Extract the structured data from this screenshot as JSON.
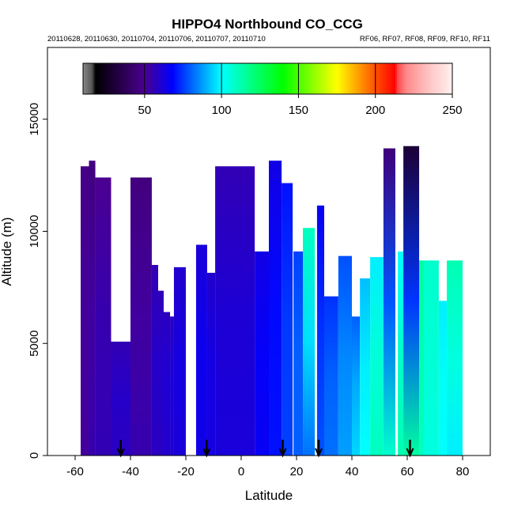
{
  "chart_data": {
    "type": "heatmap",
    "title": "HIPPO4 Northbound CO_CCG",
    "subtitle_left": "20110628, 20110630, 20110704, 20110706, 20110707, 20110710",
    "subtitle_right": "RF06, RF07, RF08, RF09, RF10, RF11",
    "xlabel": "Latitude",
    "ylabel": "Altitude (m)",
    "xlim": [
      -70,
      90
    ],
    "ylim": [
      0,
      18200
    ],
    "x_ticks": [
      -60,
      -40,
      -20,
      0,
      20,
      40,
      60,
      80
    ],
    "y_ticks": [
      0,
      5000,
      10000,
      15000
    ],
    "colorbar": {
      "range": [
        10,
        250
      ],
      "ticks": [
        50,
        100,
        150,
        200,
        250
      ],
      "stops": [
        [
          10,
          "#888888"
        ],
        [
          16,
          "#555555"
        ],
        [
          18,
          "#000000"
        ],
        [
          50,
          "#4b0090"
        ],
        [
          68,
          "#0000ff"
        ],
        [
          100,
          "#00ffff"
        ],
        [
          140,
          "#00ff00"
        ],
        [
          175,
          "#ffff00"
        ],
        [
          200,
          "#ff5000"
        ],
        [
          213,
          "#ff0000"
        ],
        [
          214,
          "#ff4444"
        ],
        [
          220,
          "#ff8888"
        ],
        [
          228,
          "#ffaaaa"
        ],
        [
          236,
          "#ffc8c8"
        ],
        [
          244,
          "#ffdede"
        ],
        [
          250,
          "#fff0f0"
        ]
      ]
    },
    "columns_note": "lat_start, lat_end, top_altitude_m, CO_bottom, CO_top",
    "columns": [
      [
        -58,
        -55,
        12900,
        52,
        48
      ],
      [
        -55,
        -52.7,
        13150,
        55,
        46
      ],
      [
        -52.7,
        -47,
        12400,
        56,
        50
      ],
      [
        -47,
        -40,
        5080,
        58,
        56
      ],
      [
        -40,
        -32.3,
        12400,
        55,
        46
      ],
      [
        -32.3,
        -30,
        8500,
        58,
        56
      ],
      [
        -30,
        -28,
        7350,
        58,
        57
      ],
      [
        -28,
        -25.7,
        6400,
        60,
        58
      ],
      [
        -25.7,
        -24.3,
        6200,
        60,
        58
      ],
      [
        -24.3,
        -20,
        8400,
        62,
        60
      ],
      [
        -16.3,
        -12.3,
        9400,
        64,
        62
      ],
      [
        -12.3,
        -9.4,
        8150,
        63,
        60
      ],
      [
        -9.4,
        4.9,
        12900,
        62,
        56
      ],
      [
        4.9,
        10,
        9100,
        66,
        64
      ],
      [
        10,
        14.6,
        13150,
        70,
        64
      ],
      [
        14.6,
        18.6,
        12150,
        76,
        70
      ],
      [
        18.9,
        22.3,
        9100,
        80,
        76
      ],
      [
        22.3,
        26.6,
        10150,
        82,
        110
      ],
      [
        27.4,
        30,
        11150,
        78,
        66
      ],
      [
        30,
        35.1,
        7100,
        82,
        74
      ],
      [
        35.1,
        40,
        8900,
        88,
        78
      ],
      [
        40,
        42.9,
        6200,
        95,
        80
      ],
      [
        42.9,
        46.6,
        7900,
        100,
        92
      ],
      [
        46.6,
        51.4,
        8850,
        110,
        98
      ],
      [
        51.4,
        55.7,
        13700,
        108,
        45
      ],
      [
        56.6,
        58.6,
        9100,
        112,
        100
      ],
      [
        58.6,
        64.3,
        13800,
        115,
        30
      ],
      [
        64.3,
        66,
        8700,
        110,
        115
      ],
      [
        66,
        71.4,
        8700,
        105,
        108
      ],
      [
        71.4,
        74.3,
        6900,
        100,
        98
      ],
      [
        74.3,
        80,
        8700,
        98,
        112
      ]
    ],
    "flight_markers_lat": [
      -43.5,
      -12.5,
      15,
      28,
      61
    ]
  }
}
